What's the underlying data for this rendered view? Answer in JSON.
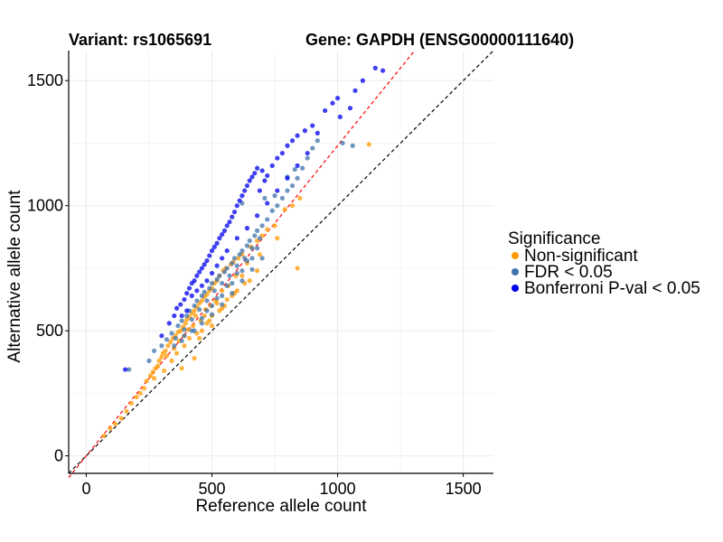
{
  "chart_data": {
    "type": "scatter",
    "title_left": "Variant: rs1065691",
    "title_right": "Gene: GAPDH (ENSG00000111640)",
    "xlabel": "Reference allele count",
    "ylabel": "Alternative allele count",
    "xlim": [
      -70,
      1620
    ],
    "ylim": [
      -70,
      1620
    ],
    "x_ticks": [
      0,
      500,
      1000,
      1500
    ],
    "y_ticks": [
      0,
      500,
      1000,
      1500
    ],
    "x_tick_labels": [
      "0",
      "500",
      "1000",
      "1500"
    ],
    "y_tick_labels": [
      "0",
      "500",
      "1000",
      "1500"
    ],
    "grid": true,
    "reference_lines": [
      {
        "name": "identity",
        "slope": 1.0,
        "intercept": 0,
        "color": "#000000",
        "dash": "dashed"
      },
      {
        "name": "fitted",
        "slope": 1.24,
        "intercept": 0,
        "color": "#ff0000",
        "dash": "dashed"
      }
    ],
    "legend": {
      "title": "Significance",
      "position": "right",
      "entries": [
        {
          "label": "Non-significant",
          "color": "#ff9a00"
        },
        {
          "label": "FDR < 0.05",
          "color": "#3d73ac"
        },
        {
          "label": "Bonferroni P-val < 0.05",
          "color": "#0000ee"
        }
      ]
    },
    "series": [
      {
        "name": "Non-significant",
        "color": "#ff9a00",
        "points": [
          [
            70,
            80
          ],
          [
            95,
            110
          ],
          [
            115,
            128
          ],
          [
            140,
            150
          ],
          [
            160,
            178
          ],
          [
            180,
            210
          ],
          [
            200,
            235
          ],
          [
            215,
            250
          ],
          [
            230,
            270
          ],
          [
            240,
            300
          ],
          [
            255,
            320
          ],
          [
            265,
            335
          ],
          [
            275,
            350
          ],
          [
            285,
            360
          ],
          [
            290,
            380
          ],
          [
            300,
            395
          ],
          [
            305,
            410
          ],
          [
            315,
            420
          ],
          [
            320,
            400
          ],
          [
            325,
            440
          ],
          [
            335,
            455
          ],
          [
            345,
            470
          ],
          [
            350,
            430
          ],
          [
            355,
            480
          ],
          [
            365,
            495
          ],
          [
            370,
            460
          ],
          [
            375,
            500
          ],
          [
            385,
            515
          ],
          [
            390,
            480
          ],
          [
            395,
            530
          ],
          [
            400,
            545
          ],
          [
            405,
            505
          ],
          [
            410,
            555
          ],
          [
            420,
            570
          ],
          [
            425,
            520
          ],
          [
            430,
            580
          ],
          [
            435,
            560
          ],
          [
            440,
            595
          ],
          [
            450,
            610
          ],
          [
            455,
            540
          ],
          [
            460,
            620
          ],
          [
            470,
            635
          ],
          [
            475,
            585
          ],
          [
            480,
            645
          ],
          [
            490,
            660
          ],
          [
            495,
            600
          ],
          [
            500,
            670
          ],
          [
            510,
            690
          ],
          [
            515,
            620
          ],
          [
            520,
            700
          ],
          [
            530,
            720
          ],
          [
            540,
            660
          ],
          [
            545,
            740
          ],
          [
            555,
            750
          ],
          [
            565,
            680
          ],
          [
            575,
            765
          ],
          [
            585,
            775
          ],
          [
            595,
            720
          ],
          [
            605,
            790
          ],
          [
            620,
            805
          ],
          [
            640,
            770
          ],
          [
            655,
            835
          ],
          [
            680,
            860
          ],
          [
            700,
            880
          ],
          [
            720,
            905
          ],
          [
            750,
            920
          ],
          [
            790,
            985
          ],
          [
            820,
            1000
          ],
          [
            850,
            1030
          ],
          [
            1125,
            1245
          ],
          [
            840,
            750
          ],
          [
            270,
            310
          ],
          [
            310,
            340
          ],
          [
            360,
            410
          ],
          [
            410,
            470
          ],
          [
            460,
            500
          ],
          [
            500,
            560
          ],
          [
            550,
            600
          ],
          [
            600,
            660
          ],
          [
            650,
            700
          ],
          [
            430,
            390
          ],
          [
            380,
            350
          ],
          [
            480,
            530
          ],
          [
            530,
            580
          ],
          [
            580,
            640
          ],
          [
            630,
            690
          ],
          [
            680,
            740
          ],
          [
            450,
            470
          ],
          [
            500,
            520
          ],
          [
            560,
            625
          ],
          [
            620,
            720
          ],
          [
            690,
            805
          ],
          [
            760,
            870
          ],
          [
            340,
            380
          ],
          [
            390,
            440
          ],
          [
            440,
            490
          ],
          [
            490,
            540
          ],
          [
            540,
            590
          ],
          [
            590,
            650
          ],
          [
            470,
            560
          ],
          [
            520,
            610
          ]
        ]
      },
      {
        "name": "FDR < 0.05",
        "color": "#3d73ac",
        "points": [
          [
            170,
            345
          ],
          [
            250,
            380
          ],
          [
            270,
            420
          ],
          [
            300,
            440
          ],
          [
            320,
            465
          ],
          [
            340,
            490
          ],
          [
            355,
            470
          ],
          [
            365,
            520
          ],
          [
            380,
            540
          ],
          [
            390,
            505
          ],
          [
            400,
            560
          ],
          [
            410,
            580
          ],
          [
            420,
            545
          ],
          [
            430,
            600
          ],
          [
            440,
            620
          ],
          [
            450,
            585
          ],
          [
            460,
            640
          ],
          [
            470,
            655
          ],
          [
            480,
            620
          ],
          [
            490,
            670
          ],
          [
            500,
            690
          ],
          [
            510,
            660
          ],
          [
            520,
            705
          ],
          [
            530,
            720
          ],
          [
            540,
            690
          ],
          [
            550,
            735
          ],
          [
            560,
            750
          ],
          [
            570,
            720
          ],
          [
            580,
            770
          ],
          [
            590,
            790
          ],
          [
            600,
            760
          ],
          [
            610,
            805
          ],
          [
            620,
            820
          ],
          [
            630,
            790
          ],
          [
            640,
            840
          ],
          [
            650,
            860
          ],
          [
            660,
            830
          ],
          [
            670,
            880
          ],
          [
            680,
            900
          ],
          [
            690,
            870
          ],
          [
            700,
            920
          ],
          [
            720,
            945
          ],
          [
            740,
            980
          ],
          [
            760,
            1000
          ],
          [
            780,
            1030
          ],
          [
            800,
            1060
          ],
          [
            820,
            1080
          ],
          [
            840,
            1110
          ],
          [
            860,
            1150
          ],
          [
            880,
            1190
          ],
          [
            900,
            1230
          ],
          [
            920,
            1260
          ],
          [
            1020,
            1250
          ],
          [
            1060,
            1240
          ],
          [
            620,
            1010
          ],
          [
            710,
            1030
          ],
          [
            750,
            1040
          ],
          [
            800,
            1115
          ],
          [
            830,
            1145
          ],
          [
            430,
            500
          ],
          [
            460,
            530
          ],
          [
            500,
            565
          ],
          [
            540,
            605
          ],
          [
            580,
            650
          ],
          [
            620,
            700
          ],
          [
            660,
            745
          ],
          [
            700,
            790
          ],
          [
            480,
            580
          ],
          [
            520,
            630
          ],
          [
            560,
            680
          ],
          [
            600,
            730
          ],
          [
            640,
            780
          ],
          [
            680,
            830
          ],
          [
            380,
            460
          ],
          [
            420,
            500
          ],
          [
            460,
            550
          ],
          [
            500,
            600
          ],
          [
            540,
            640
          ],
          [
            580,
            690
          ],
          [
            620,
            740
          ],
          [
            660,
            790
          ],
          [
            350,
            440
          ],
          [
            390,
            480
          ]
        ]
      },
      {
        "name": "Bonferroni P-val < 0.05",
        "color": "#0000ee",
        "points": [
          [
            155,
            345
          ],
          [
            300,
            480
          ],
          [
            330,
            530
          ],
          [
            350,
            560
          ],
          [
            360,
            590
          ],
          [
            375,
            605
          ],
          [
            390,
            625
          ],
          [
            400,
            650
          ],
          [
            410,
            670
          ],
          [
            420,
            690
          ],
          [
            430,
            700
          ],
          [
            440,
            720
          ],
          [
            450,
            735
          ],
          [
            460,
            750
          ],
          [
            470,
            765
          ],
          [
            480,
            780
          ],
          [
            490,
            800
          ],
          [
            500,
            820
          ],
          [
            510,
            835
          ],
          [
            520,
            850
          ],
          [
            530,
            870
          ],
          [
            540,
            885
          ],
          [
            550,
            900
          ],
          [
            560,
            920
          ],
          [
            570,
            935
          ],
          [
            580,
            955
          ],
          [
            590,
            975
          ],
          [
            600,
            1000
          ],
          [
            610,
            1020
          ],
          [
            620,
            1040
          ],
          [
            630,
            1060
          ],
          [
            640,
            1080
          ],
          [
            650,
            1100
          ],
          [
            660,
            1115
          ],
          [
            670,
            1130
          ],
          [
            680,
            1150
          ],
          [
            690,
            1060
          ],
          [
            700,
            1140
          ],
          [
            710,
            1100
          ],
          [
            720,
            1120
          ],
          [
            740,
            1160
          ],
          [
            760,
            1190
          ],
          [
            780,
            1210
          ],
          [
            800,
            1240
          ],
          [
            820,
            1260
          ],
          [
            840,
            1280
          ],
          [
            870,
            1300
          ],
          [
            900,
            1320
          ],
          [
            920,
            1290
          ],
          [
            950,
            1380
          ],
          [
            980,
            1410
          ],
          [
            1000,
            1430
          ],
          [
            1010,
            1355
          ],
          [
            1050,
            1390
          ],
          [
            1100,
            1500
          ],
          [
            1150,
            1550
          ],
          [
            1180,
            1540
          ],
          [
            1070,
            1460
          ],
          [
            420,
            640
          ],
          [
            440,
            660
          ],
          [
            460,
            680
          ],
          [
            480,
            700
          ],
          [
            500,
            730
          ],
          [
            520,
            760
          ],
          [
            540,
            790
          ],
          [
            560,
            820
          ],
          [
            380,
            560
          ],
          [
            400,
            580
          ],
          [
            600,
            870
          ],
          [
            640,
            910
          ],
          [
            680,
            960
          ],
          [
            720,
            1010
          ],
          [
            760,
            1060
          ],
          [
            800,
            1110
          ],
          [
            840,
            1160
          ],
          [
            880,
            1210
          ]
        ]
      }
    ]
  }
}
